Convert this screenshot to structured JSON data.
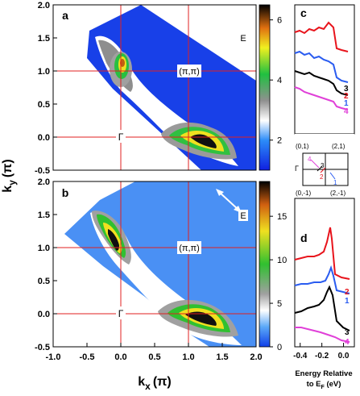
{
  "chart_data": [
    {
      "type": "heatmap",
      "panel_label": "a",
      "ylabel_main": "k",
      "ylabel_sub": "y",
      "ylabel_unit": "(π)",
      "xlim": [
        -1.0,
        2.0
      ],
      "ylim": [
        -0.5,
        2.0
      ],
      "yticks": [
        "-0.5",
        "0.0",
        "0.5",
        "1.0",
        "1.5",
        "2.0"
      ],
      "colorbar_ticks": [
        "2",
        "4",
        "6"
      ],
      "colorbar_range": [
        1,
        6.5
      ],
      "point_labels": {
        "gamma": "Γ",
        "pipi": "(π,π)"
      },
      "arrow_label": "E",
      "hotspots": [
        {
          "x": 0.0,
          "y": 1.05,
          "level": 5.8
        },
        {
          "x": 1.15,
          "y": 0.0,
          "level": 6.4
        }
      ]
    },
    {
      "type": "heatmap",
      "panel_label": "b",
      "xlabel_main": "k",
      "xlabel_sub": "x",
      "xlabel_unit": "(π)",
      "ylabel_main": "k",
      "ylabel_sub": "y",
      "ylabel_unit": "(π)",
      "xlim": [
        -1.0,
        2.0
      ],
      "ylim": [
        -0.5,
        2.0
      ],
      "xticks": [
        "-1.0",
        "-0.5",
        "0.0",
        "0.5",
        "1.0",
        "1.5",
        "2.0"
      ],
      "yticks": [
        "-0.5",
        "0.0",
        "0.5",
        "1.0",
        "1.5",
        "2.0"
      ],
      "colorbar_ticks": [
        "0",
        "5",
        "10",
        "15"
      ],
      "colorbar_range": [
        0,
        19
      ],
      "point_labels": {
        "gamma": "Γ",
        "pipi": "(π,π)"
      },
      "arrow_label": "E",
      "hotspots": [
        {
          "x": -0.05,
          "y": 1.05,
          "level": 18
        },
        {
          "x": 1.05,
          "y": 0.0,
          "level": 18
        }
      ]
    },
    {
      "type": "line",
      "panel_label": "c",
      "series": [
        {
          "name": "2",
          "color": "#e8141c"
        },
        {
          "name": "1",
          "color": "#2a5cf0"
        },
        {
          "name": "3",
          "color": "#000000"
        },
        {
          "name": "4",
          "color": "#e040d8"
        }
      ]
    },
    {
      "type": "line",
      "panel_label": "d",
      "xlabel_line1": "Energy Relative",
      "xlabel_line2": "to E",
      "xlabel_sub": "F",
      "xlabel_unit": " (eV)",
      "xticks": [
        "-0.4",
        "-0.2",
        "0.0"
      ],
      "xlim": [
        -0.45,
        0.1
      ],
      "series": [
        {
          "name": "2",
          "color": "#e8141c"
        },
        {
          "name": "1",
          "color": "#2a5cf0"
        },
        {
          "name": "3",
          "color": "#000000"
        },
        {
          "name": "4",
          "color": "#e040d8"
        }
      ]
    }
  ],
  "inset": {
    "labels": [
      "(0,1)",
      "(2,1)",
      "(0,-1)",
      "(2,-1)",
      "Γ"
    ],
    "cut_labels": [
      "4",
      "3",
      "2",
      "1"
    ]
  },
  "colors": {
    "map_background": "#1840e8",
    "grid_lines": "#e02020"
  }
}
